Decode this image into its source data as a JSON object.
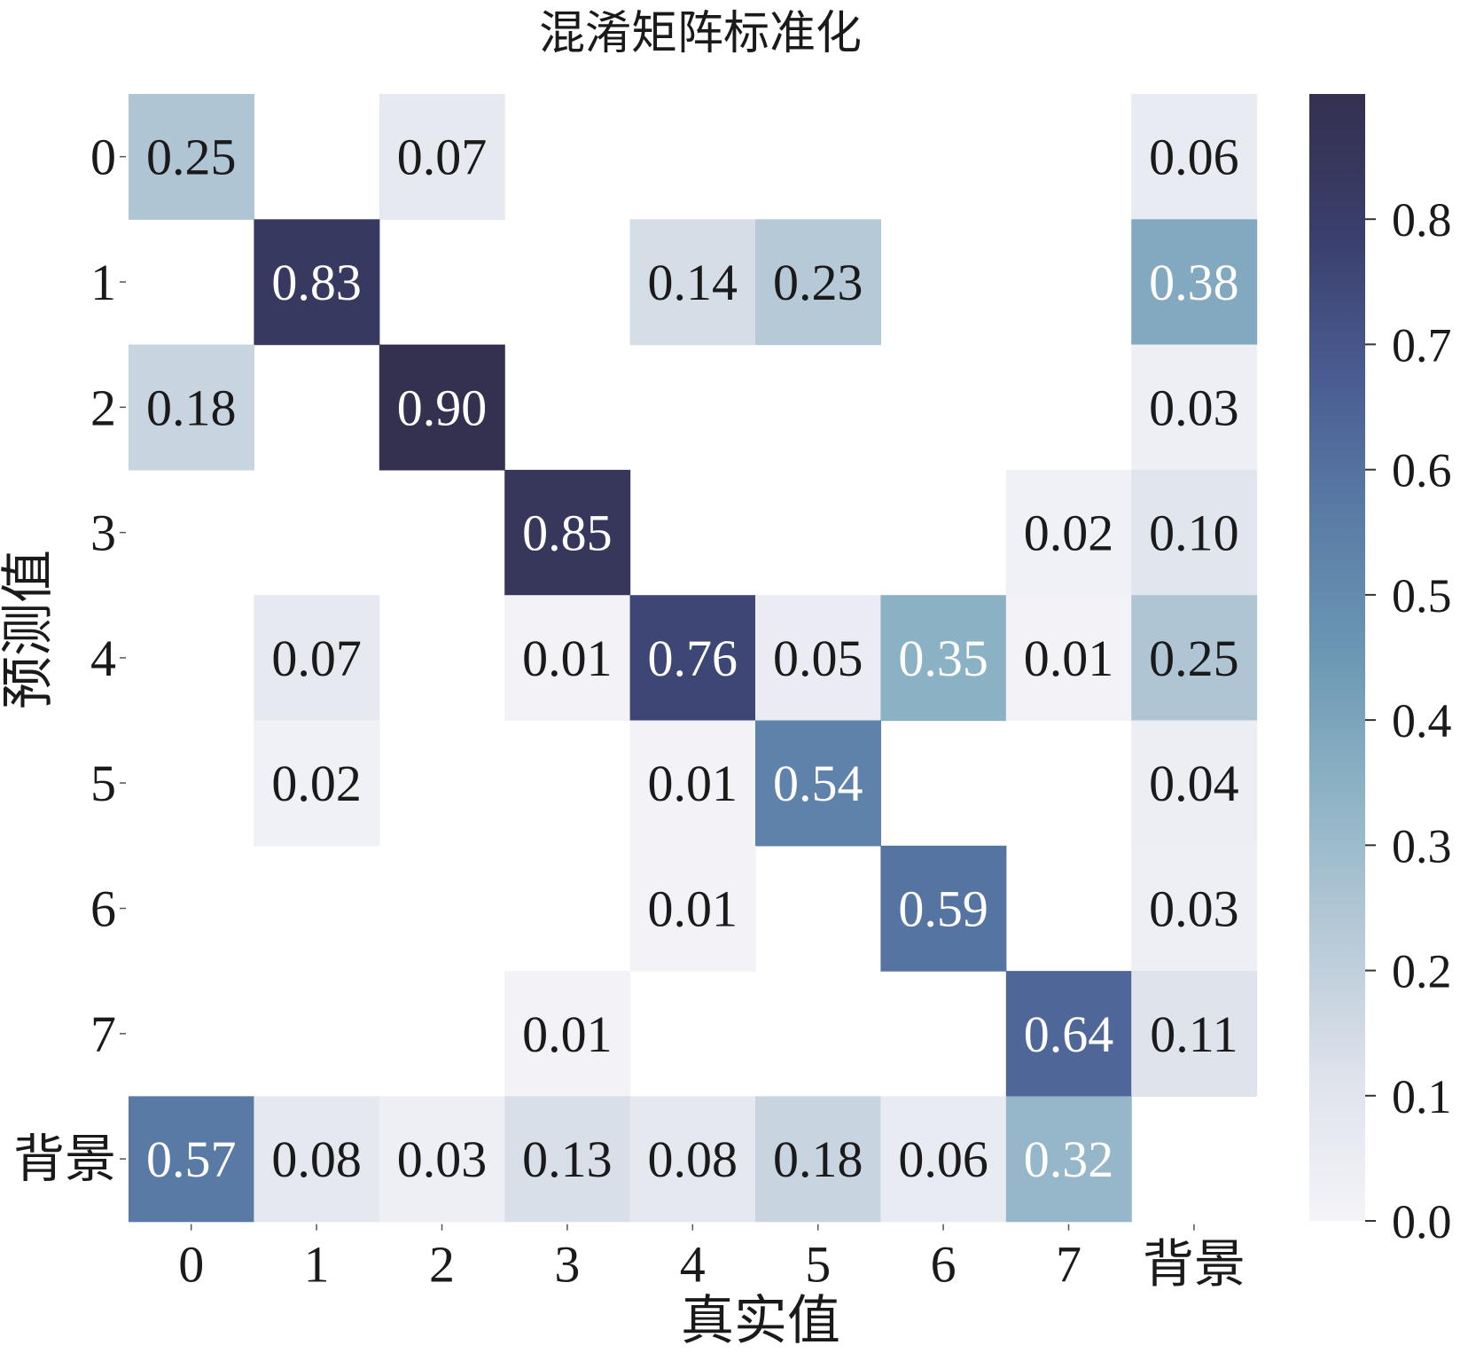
{
  "chart_data": {
    "type": "heatmap",
    "title": "混淆矩阵标准化",
    "xlabel": "真实值",
    "ylabel": "预测值",
    "x_categories": [
      "0",
      "1",
      "2",
      "3",
      "4",
      "5",
      "6",
      "7",
      "背景"
    ],
    "y_categories": [
      "0",
      "1",
      "2",
      "3",
      "4",
      "5",
      "6",
      "7",
      "背景"
    ],
    "values": [
      [
        0.25,
        null,
        0.07,
        null,
        null,
        null,
        null,
        null,
        0.06
      ],
      [
        null,
        0.83,
        null,
        null,
        0.14,
        0.23,
        null,
        null,
        0.38
      ],
      [
        0.18,
        null,
        0.9,
        null,
        null,
        null,
        null,
        null,
        0.03
      ],
      [
        null,
        null,
        null,
        0.85,
        null,
        null,
        null,
        0.02,
        0.1
      ],
      [
        null,
        0.07,
        null,
        0.01,
        0.76,
        0.05,
        0.35,
        0.01,
        0.25
      ],
      [
        null,
        0.02,
        null,
        null,
        0.01,
        0.54,
        null,
        null,
        0.04
      ],
      [
        null,
        null,
        null,
        null,
        0.01,
        null,
        0.59,
        null,
        0.03
      ],
      [
        null,
        null,
        null,
        0.01,
        null,
        null,
        null,
        0.64,
        0.11
      ],
      [
        0.57,
        0.08,
        0.03,
        0.13,
        0.08,
        0.18,
        0.06,
        0.32,
        null
      ]
    ],
    "value_labels": [
      [
        "0.25",
        "",
        "0.07",
        "",
        "",
        "",
        "",
        "",
        "0.06"
      ],
      [
        "",
        "0.83",
        "",
        "",
        "0.14",
        "0.23",
        "",
        "",
        "0.38"
      ],
      [
        "0.18",
        "",
        "0.90",
        "",
        "",
        "",
        "",
        "",
        "0.03"
      ],
      [
        "",
        "",
        "",
        "0.85",
        "",
        "",
        "",
        "0.02",
        "0.10"
      ],
      [
        "",
        "0.07",
        "",
        "0.01",
        "0.76",
        "0.05",
        "0.35",
        "0.01",
        "0.25"
      ],
      [
        "",
        "0.02",
        "",
        "",
        "0.01",
        "0.54",
        "",
        "",
        "0.04"
      ],
      [
        "",
        "",
        "",
        "",
        "0.01",
        "",
        "0.59",
        "",
        "0.03"
      ],
      [
        "",
        "",
        "",
        "0.01",
        "",
        "",
        "",
        "0.64",
        "0.11"
      ],
      [
        "0.57",
        "0.08",
        "0.03",
        "0.13",
        "0.08",
        "0.18",
        "0.06",
        "0.32",
        ""
      ]
    ],
    "colorbar": {
      "range": [
        0.0,
        0.9
      ],
      "ticks": [
        0.0,
        0.1,
        0.2,
        0.3,
        0.4,
        0.5,
        0.6,
        0.7,
        0.8
      ],
      "tick_labels": [
        "0.0",
        "0.1",
        "0.2",
        "0.3",
        "0.4",
        "0.5",
        "0.6",
        "0.7",
        "0.8"
      ],
      "colormap": [
        "#f4f4f8",
        "#dfe3ec",
        "#b8cad8",
        "#8fb4c6",
        "#6c98b4",
        "#5a7ca6",
        "#4a5c92",
        "#3a3f6c",
        "#34304f"
      ]
    },
    "grid": false,
    "legend": "colorbar-right"
  }
}
